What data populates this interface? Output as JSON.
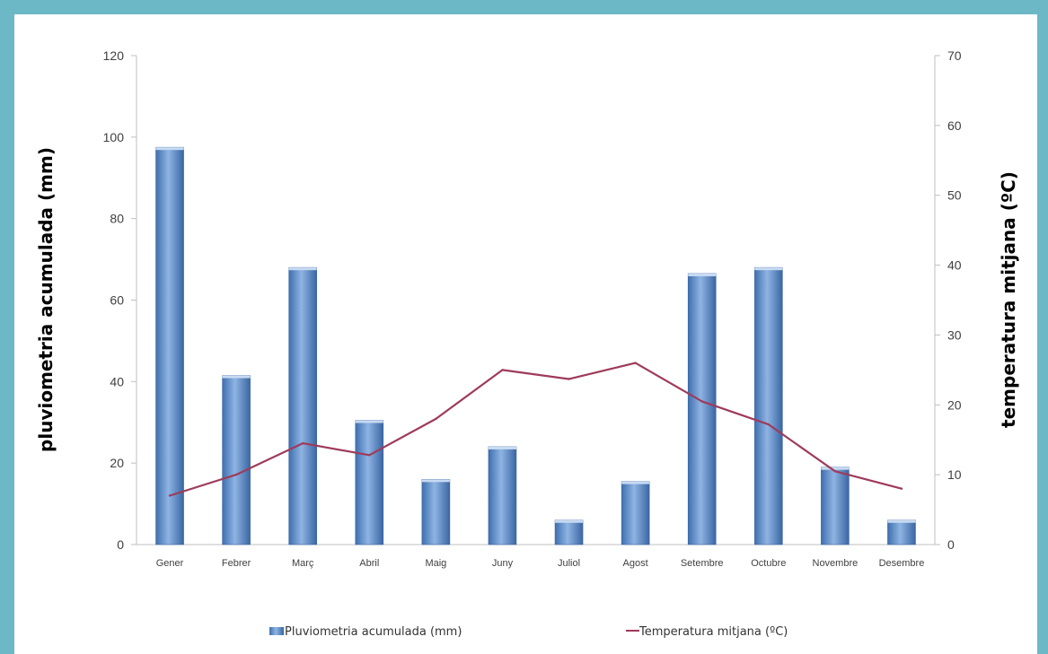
{
  "chart_data": {
    "type": "bar",
    "categories": [
      "Gener",
      "Febrer",
      "Març",
      "Abril",
      "Maig",
      "Juny",
      "Juliol",
      "Agost",
      "Setembre",
      "Octubre",
      "Novembre",
      "Desembre"
    ],
    "series": [
      {
        "name": "Pluviometria acumulada (mm)",
        "type": "bar",
        "axis": "left",
        "color": "#4f81bd",
        "values": [
          97.5,
          41.5,
          68,
          30.5,
          16,
          24,
          6,
          15.5,
          66.5,
          68,
          19,
          6
        ]
      },
      {
        "name": "Temperatura mitjana (ºC)",
        "type": "line",
        "axis": "right",
        "color": "#9e3b5a",
        "values": [
          7,
          10,
          14.5,
          12.8,
          18,
          25,
          23.7,
          26,
          20.5,
          17.2,
          10.5,
          8
        ]
      }
    ],
    "ylabel": "pluviometria acumulada (mm)",
    "y2label": "temperatura mitjana (ºC)",
    "ylim": [
      0,
      120
    ],
    "y2lim": [
      0,
      70
    ],
    "yticks": [
      "0",
      "20",
      "40",
      "60",
      "80",
      "100",
      "120"
    ],
    "y2ticks": [
      "0",
      "10",
      "20",
      "30",
      "40",
      "50",
      "60",
      "70"
    ],
    "legend": "bottom",
    "grid": false
  }
}
